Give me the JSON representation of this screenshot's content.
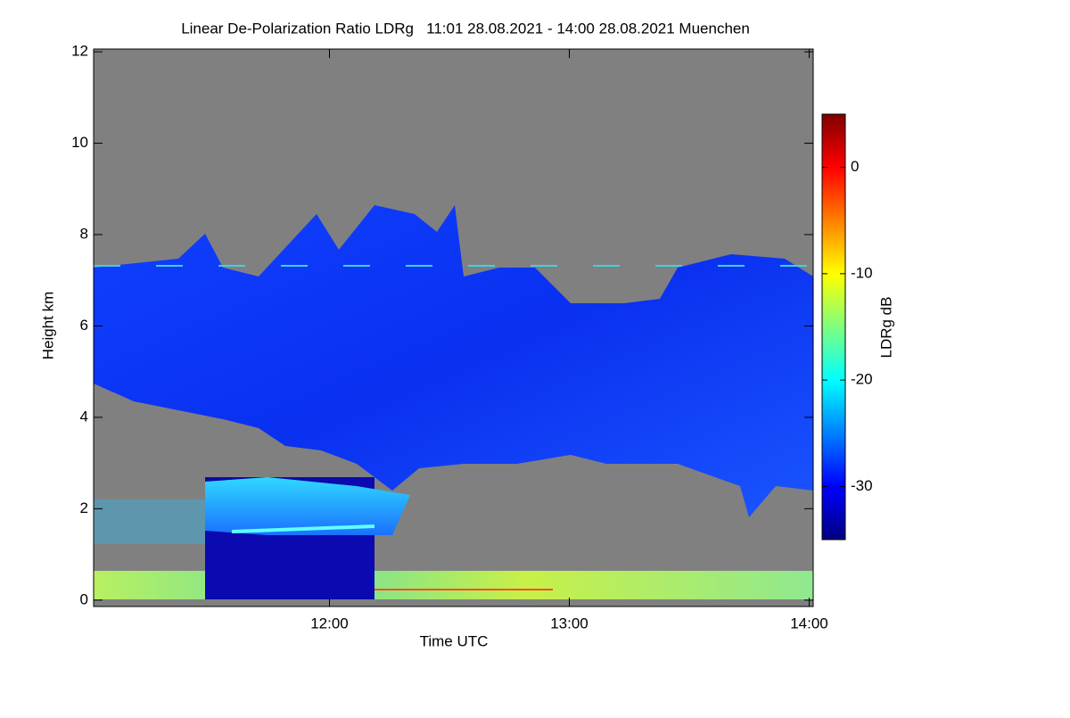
{
  "chart_data": {
    "type": "heatmap",
    "title": "Linear De-Polarization Ratio LDRg   11:01 28.08.2021 - 14:00 28.08.2021 Muenchen",
    "x_label": "Time UTC",
    "y_label": "Height km",
    "colorbar_label": "LDRg dB",
    "xlim": [
      11.0167,
      14.0167
    ],
    "xticks": [
      {
        "value": 12,
        "label": "12:00"
      },
      {
        "value": 13,
        "label": "13:00"
      },
      {
        "value": 14,
        "label": "14:00"
      }
    ],
    "ylim": [
      -0.14,
      12.06
    ],
    "yticks": [
      0,
      2,
      4,
      6,
      8,
      10,
      12
    ],
    "clim": [
      -35,
      5
    ],
    "cticks": [
      -30,
      -20,
      -10,
      0
    ],
    "colormap": [
      "#00007f",
      "#0000ff",
      "#007fff",
      "#00ffff",
      "#7fff7f",
      "#ffff00",
      "#ff7f00",
      "#ff0000",
      "#7f0000"
    ]
  }
}
